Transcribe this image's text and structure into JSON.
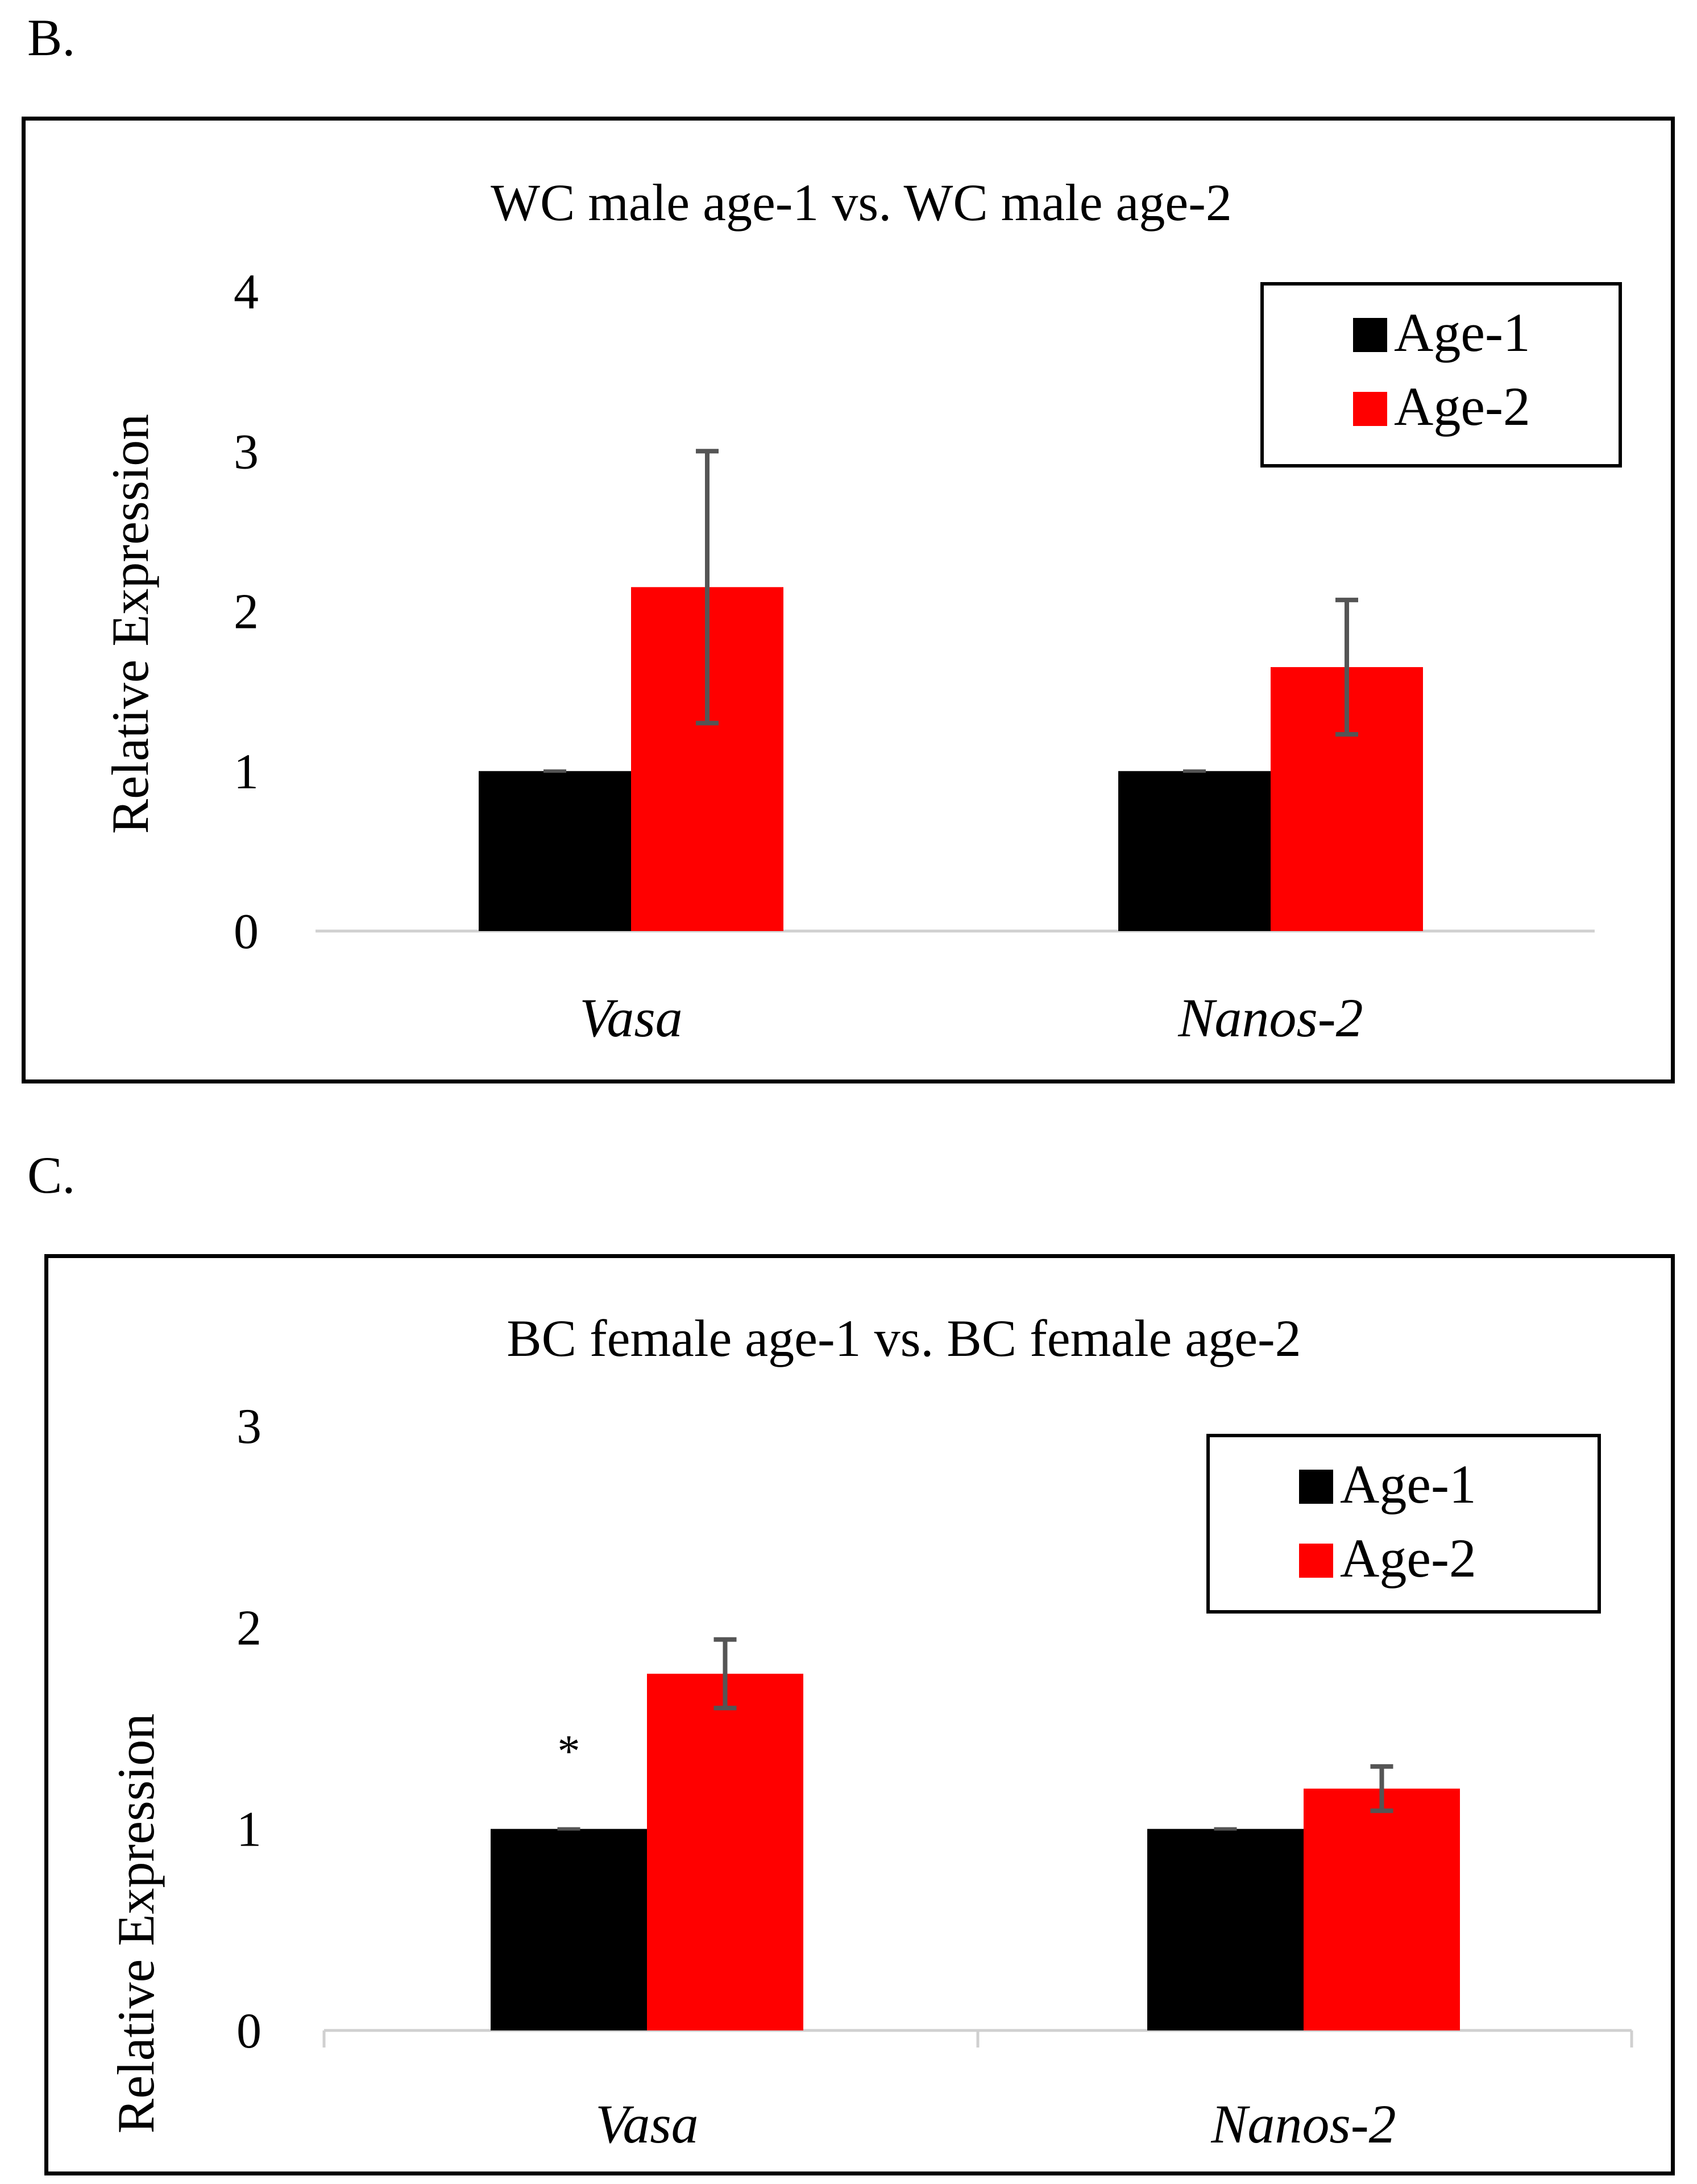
{
  "panels": [
    {
      "label": "B.",
      "chart_data": {
        "type": "bar",
        "title": "WC male age-1 vs. WC male age-2",
        "ylabel": "Relative Expression",
        "xlabel": "",
        "categories": [
          "Vasa",
          "Nanos-2"
        ],
        "ylim": [
          0,
          4
        ],
        "yticks": [
          0,
          1,
          2,
          3,
          4
        ],
        "legend_position": "top-right",
        "grid": false,
        "series": [
          {
            "name": "Age-1",
            "color": "#000000",
            "values": [
              1.0,
              1.0
            ],
            "errors": [
              0.0,
              0.0
            ]
          },
          {
            "name": "Age-2",
            "color": "#ff0000",
            "values": [
              2.15,
              1.65
            ],
            "errors": [
              0.85,
              0.42
            ]
          }
        ],
        "annotations": []
      }
    },
    {
      "label": "C.",
      "chart_data": {
        "type": "bar",
        "title": "BC female age-1 vs. BC female age-2",
        "ylabel": "Relative Expression",
        "xlabel": "",
        "categories": [
          "Vasa",
          "Nanos-2"
        ],
        "ylim": [
          0,
          3
        ],
        "yticks": [
          0,
          1,
          2,
          3
        ],
        "legend_position": "top-right",
        "grid": false,
        "series": [
          {
            "name": "Age-1",
            "color": "#000000",
            "values": [
              1.0,
              1.0
            ],
            "errors": [
              0.0,
              0.0
            ]
          },
          {
            "name": "Age-2",
            "color": "#ff0000",
            "values": [
              1.77,
              1.2
            ],
            "errors": [
              0.17,
              0.11
            ]
          }
        ],
        "annotations": [
          {
            "text": "*",
            "category": "Vasa",
            "series": "Age-1"
          }
        ]
      }
    }
  ]
}
